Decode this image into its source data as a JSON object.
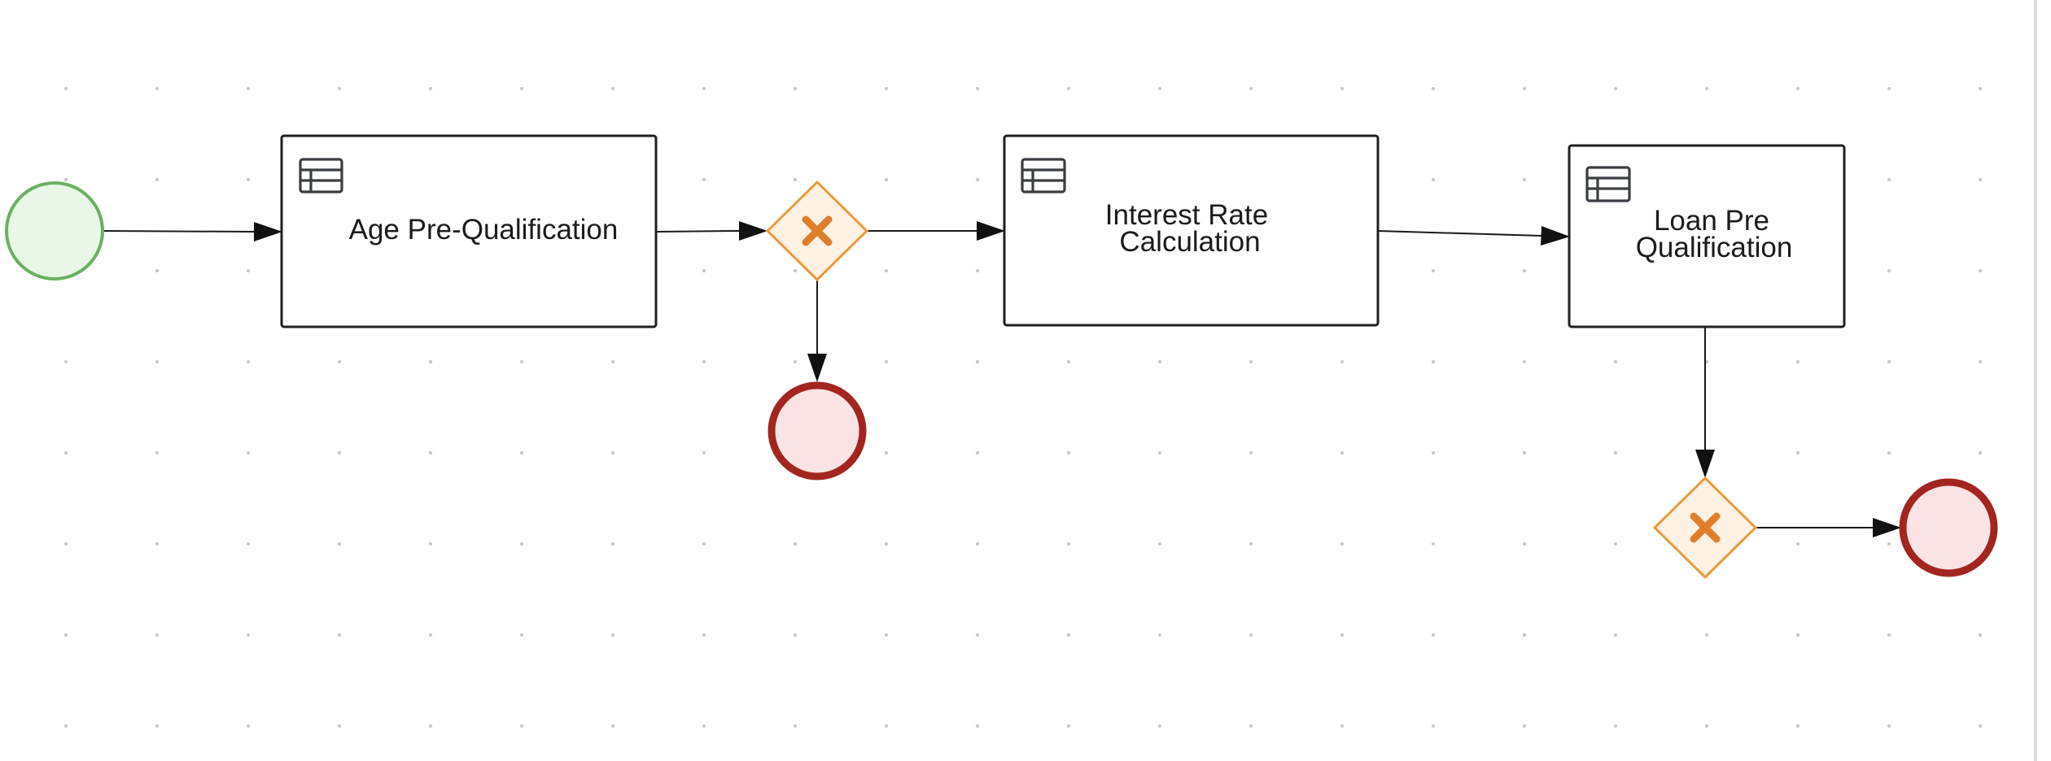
{
  "diagram": {
    "type": "bpmn-process",
    "nodes": [
      {
        "id": "start",
        "kind": "start-event"
      },
      {
        "id": "age",
        "kind": "business-rule-task",
        "label_lines": [
          "Age Pre-Qualification"
        ]
      },
      {
        "id": "gw1",
        "kind": "exclusive-gateway"
      },
      {
        "id": "end1",
        "kind": "end-event"
      },
      {
        "id": "interest",
        "kind": "business-rule-task",
        "label_lines": [
          "Interest Rate",
          "Calculation"
        ]
      },
      {
        "id": "loan",
        "kind": "business-rule-task",
        "label_lines": [
          "Loan Pre",
          "Qualification"
        ]
      },
      {
        "id": "gw2",
        "kind": "exclusive-gateway"
      },
      {
        "id": "end2",
        "kind": "end-event"
      }
    ],
    "edges": [
      {
        "from": "start",
        "to": "age"
      },
      {
        "from": "age",
        "to": "gw1"
      },
      {
        "from": "gw1",
        "to": "interest"
      },
      {
        "from": "gw1",
        "to": "end1"
      },
      {
        "from": "interest",
        "to": "loan"
      },
      {
        "from": "loan",
        "to": "gw2"
      },
      {
        "from": "gw2",
        "to": "end2"
      }
    ]
  },
  "tasks": {
    "age": {
      "line1": "Age Pre-Qualification"
    },
    "interest": {
      "line1": "Interest Rate",
      "line2": "Calculation"
    },
    "loan": {
      "line1": "Loan Pre",
      "line2": "Qualification"
    }
  },
  "colors": {
    "start_stroke": "#6ab061",
    "start_fill": "#e9f7e6",
    "end_stroke": "#a3251f",
    "end_fill": "#f9e3e5",
    "gateway_stroke": "#ec9a3c",
    "gateway_fill": "#fff2e4",
    "gateway_mark": "#e07d2a"
  },
  "icons": {
    "task_type": "table-icon",
    "gateway_mark": "x-mark-icon"
  }
}
